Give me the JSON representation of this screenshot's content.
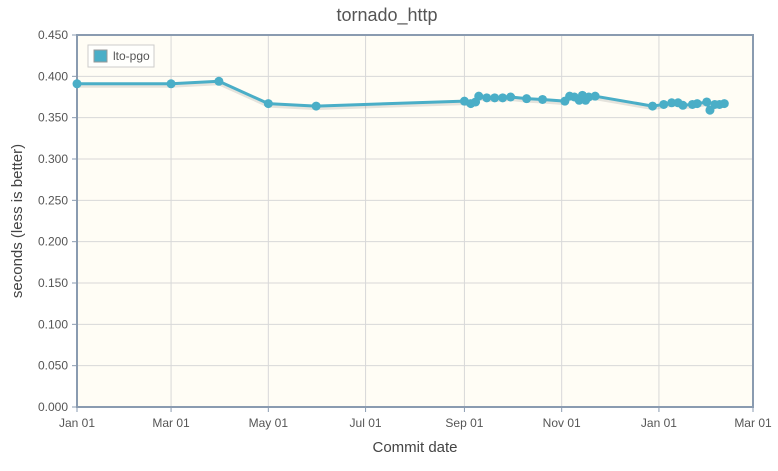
{
  "chart_data": {
    "type": "line",
    "title": "tornado_http",
    "xlabel": "Commit date",
    "ylabel": "seconds (less is better)",
    "x_axis": {
      "type": "date",
      "min": "2022-01-01",
      "max": "2023-03-01",
      "ticks": [
        {
          "date": "2022-01-01",
          "label": "Jan 01"
        },
        {
          "date": "2022-03-01",
          "label": "Mar 01"
        },
        {
          "date": "2022-05-01",
          "label": "May 01"
        },
        {
          "date": "2022-07-01",
          "label": "Jul 01"
        },
        {
          "date": "2022-09-01",
          "label": "Sep 01"
        },
        {
          "date": "2022-11-01",
          "label": "Nov 01"
        },
        {
          "date": "2023-01-01",
          "label": "Jan 01"
        },
        {
          "date": "2023-03-01",
          "label": "Mar 01"
        }
      ]
    },
    "y_axis": {
      "min": 0,
      "max": 0.45,
      "ticks": [
        "0.000",
        "0.050",
        "0.100",
        "0.150",
        "0.200",
        "0.250",
        "0.300",
        "0.350",
        "0.400",
        "0.450"
      ]
    },
    "grid": true,
    "legend": {
      "position": "top-left"
    },
    "colors": {
      "series": "#4aaec7",
      "plot_background": "#fffdf5",
      "grid": "#d8d8d8",
      "axis": "#8a9bb0"
    },
    "series": [
      {
        "name": "lto-pgo",
        "points": [
          [
            "2022-01-01",
            0.391
          ],
          [
            "2022-03-01",
            0.391
          ],
          [
            "2022-03-31",
            0.394
          ],
          [
            "2022-05-01",
            0.367
          ],
          [
            "2022-05-31",
            0.364
          ],
          [
            "2022-09-01",
            0.37
          ],
          [
            "2022-09-05",
            0.367
          ],
          [
            "2022-09-08",
            0.369
          ],
          [
            "2022-09-10",
            0.376
          ],
          [
            "2022-09-15",
            0.374
          ],
          [
            "2022-09-20",
            0.374
          ],
          [
            "2022-09-25",
            0.374
          ],
          [
            "2022-09-30",
            0.375
          ],
          [
            "2022-10-10",
            0.373
          ],
          [
            "2022-10-20",
            0.372
          ],
          [
            "2022-11-03",
            0.37
          ],
          [
            "2022-11-06",
            0.376
          ],
          [
            "2022-11-09",
            0.375
          ],
          [
            "2022-11-12",
            0.371
          ],
          [
            "2022-11-14",
            0.377
          ],
          [
            "2022-11-16",
            0.371
          ],
          [
            "2022-11-18",
            0.375
          ],
          [
            "2022-11-22",
            0.376
          ],
          [
            "2022-12-28",
            0.364
          ],
          [
            "2023-01-04",
            0.366
          ],
          [
            "2023-01-09",
            0.368
          ],
          [
            "2023-01-13",
            0.368
          ],
          [
            "2023-01-16",
            0.365
          ],
          [
            "2023-01-22",
            0.366
          ],
          [
            "2023-01-25",
            0.367
          ],
          [
            "2023-01-31",
            0.369
          ],
          [
            "2023-02-02",
            0.359
          ],
          [
            "2023-02-05",
            0.366
          ],
          [
            "2023-02-08",
            0.366
          ],
          [
            "2023-02-11",
            0.367
          ]
        ]
      }
    ]
  }
}
